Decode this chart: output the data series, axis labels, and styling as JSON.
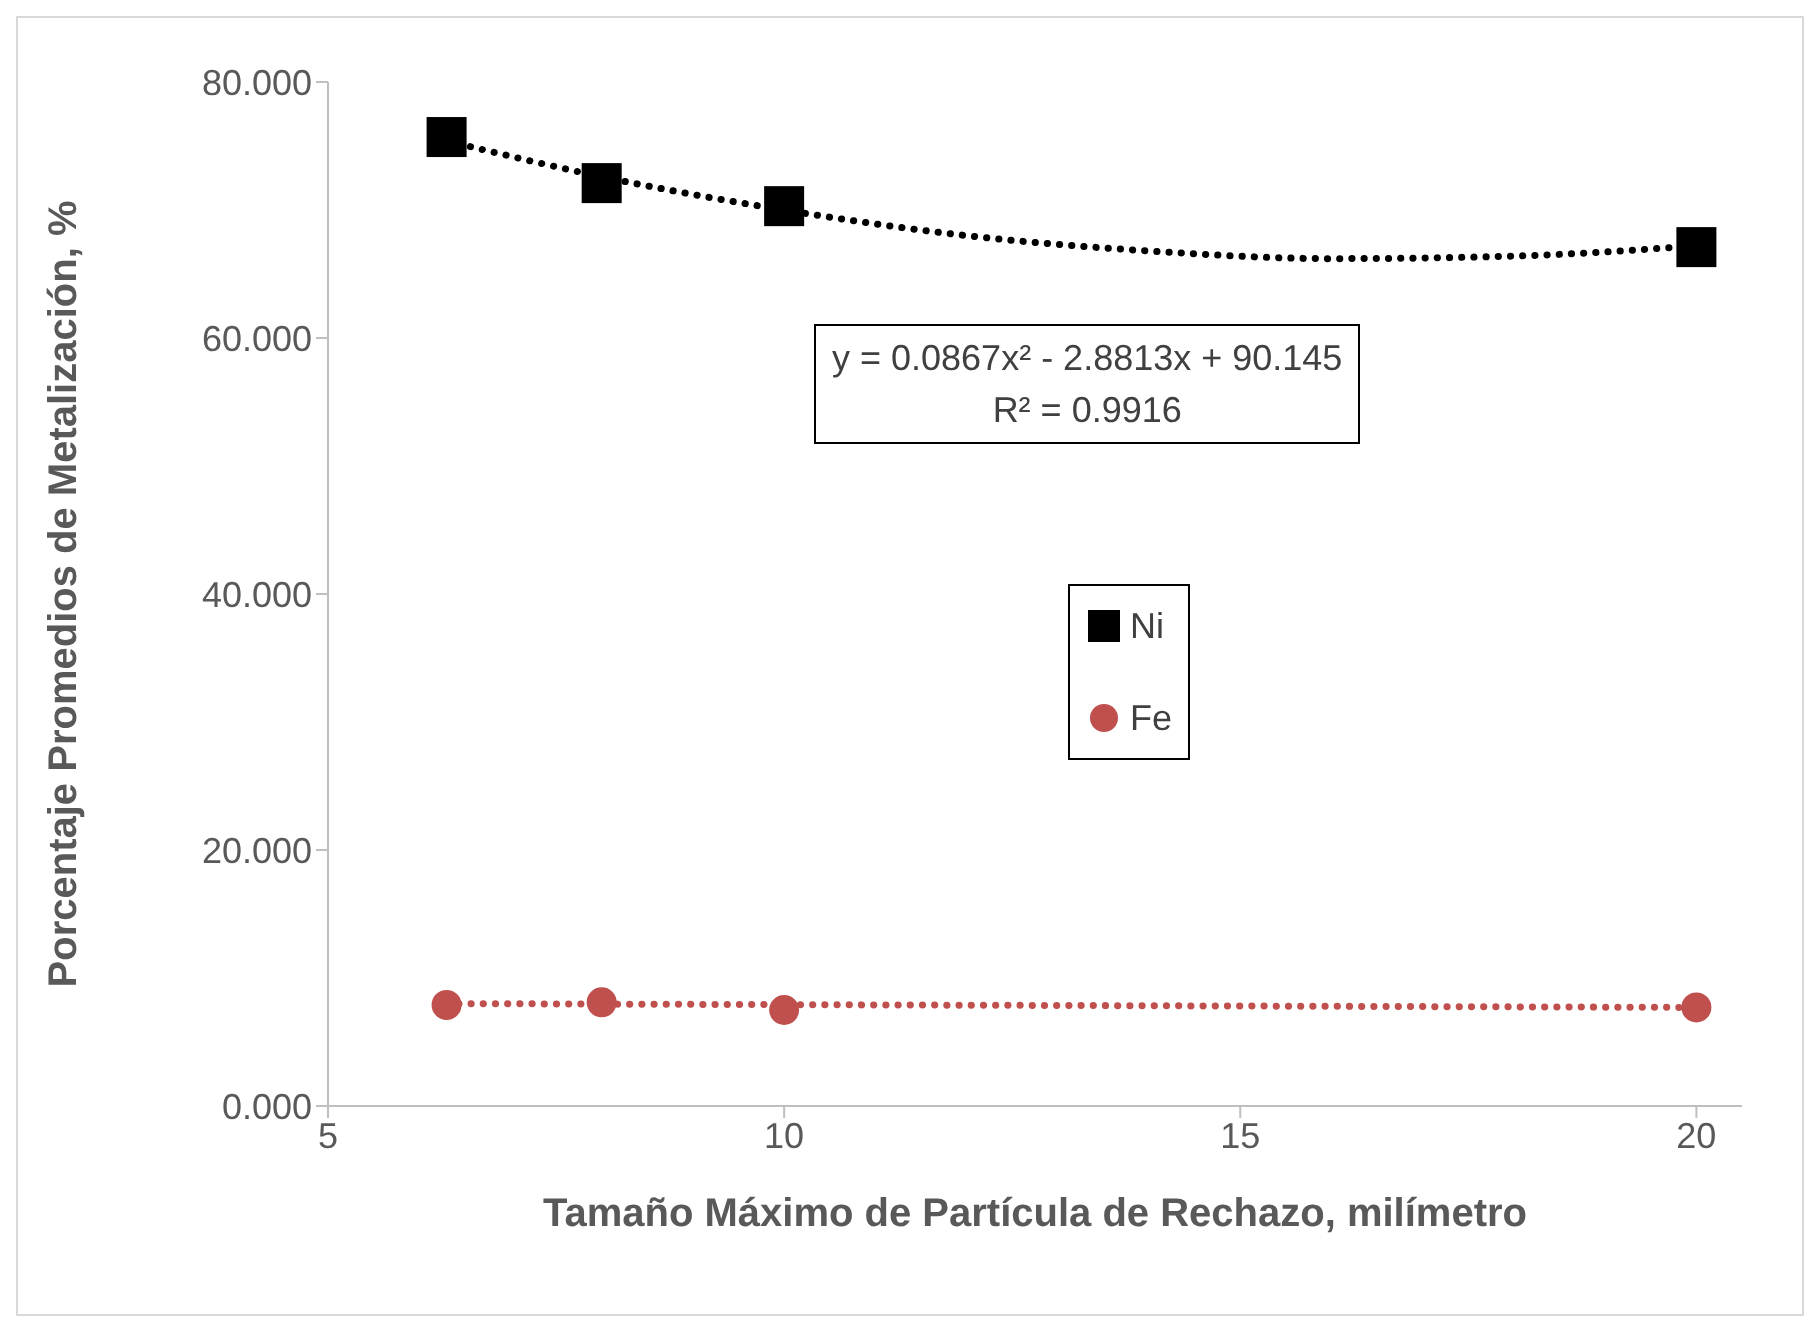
{
  "chart_data": {
    "type": "scatter",
    "xlabel": "Tamaño Máximo de Partícula de Rechazo, milímetro",
    "ylabel": "Porcentaje Promedios de Metalización, %",
    "xlim": [
      5,
      20.5
    ],
    "xticks": [
      5,
      10,
      15,
      20
    ],
    "ylim": [
      0,
      80
    ],
    "yticks": [
      {
        "value": 0,
        "label": "0.000"
      },
      {
        "value": 20,
        "label": "20.000"
      },
      {
        "value": 40,
        "label": "40.000"
      },
      {
        "value": 60,
        "label": "60.000"
      },
      {
        "value": 80,
        "label": "80.000"
      }
    ],
    "legend": "center",
    "annotations": [
      "y = 0.0867x² - 2.8813x + 90.145\nR² = 0.9916"
    ],
    "series": [
      {
        "name": "Ni",
        "marker": "square",
        "color": "#000000",
        "x": [
          6.3,
          8,
          10,
          20
        ],
        "values": [
          75.7,
          72.1,
          70.3,
          67.1
        ]
      },
      {
        "name": "Fe",
        "marker": "circle",
        "color": "#c0504d",
        "x": [
          6.3,
          8,
          10,
          20
        ],
        "values": [
          7.9,
          8.1,
          7.5,
          7.7
        ]
      },
      {
        "type": "line",
        "marker": "none",
        "line_style": "dotted",
        "color": "#000000",
        "x": [
          6.3,
          8,
          10,
          12,
          14,
          16,
          18,
          20
        ],
        "values": [
          75.4,
          72.6,
          70.0,
          68.0,
          66.8,
          66.2,
          66.4,
          67.2
        ]
      },
      {
        "type": "line",
        "marker": "none",
        "line_style": "dotted",
        "color": "#c0504d",
        "x": [
          6.3,
          20
        ],
        "values": [
          8.0,
          7.7
        ]
      }
    ]
  }
}
